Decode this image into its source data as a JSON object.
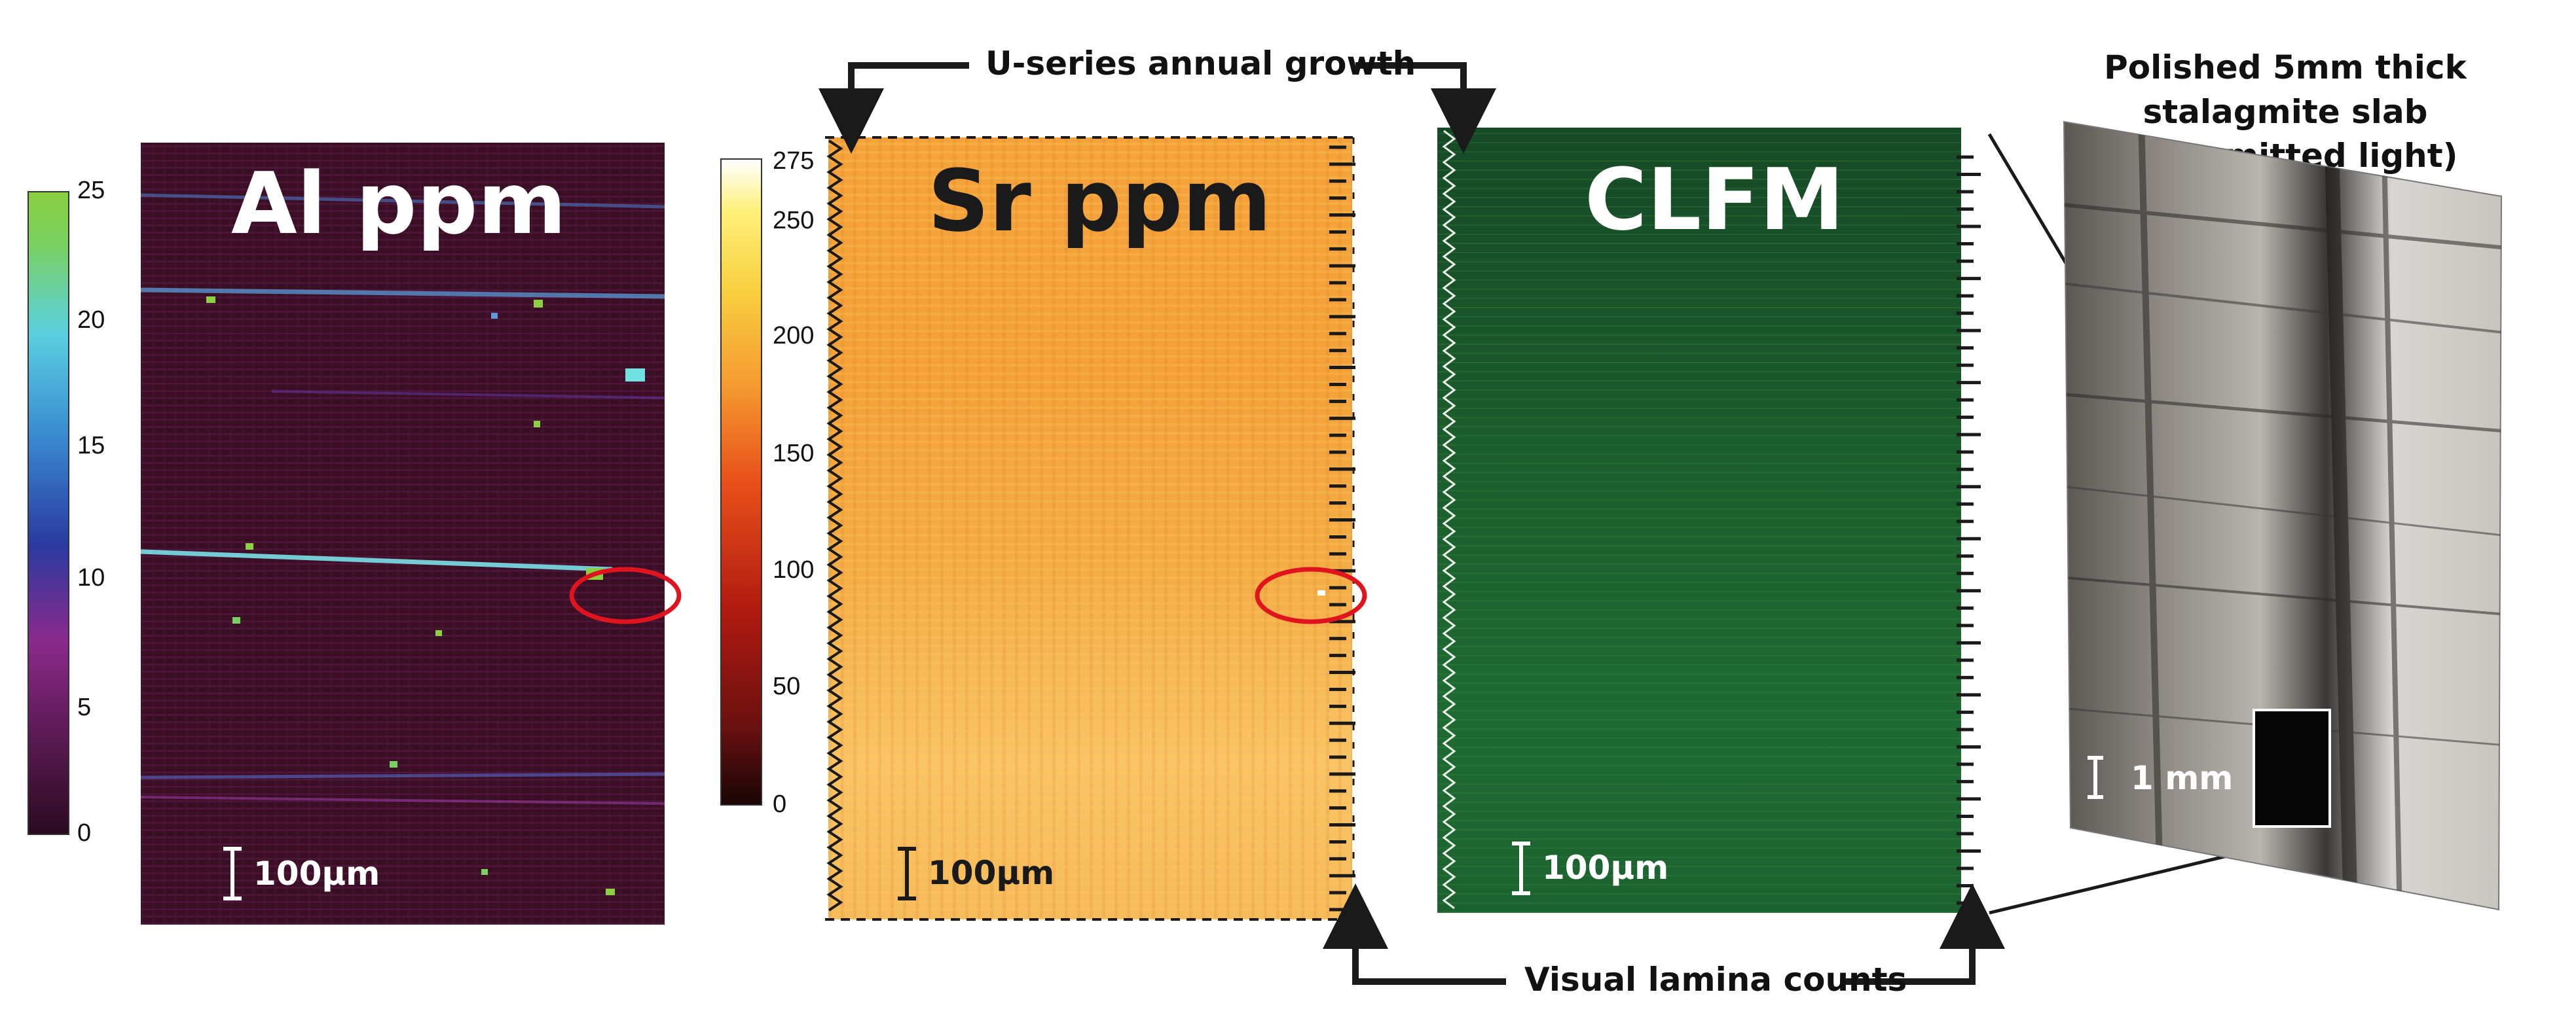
{
  "panels": {
    "al": {
      "title": "Al ppm",
      "scale_label": "100µm",
      "colorbar_ticks": [
        "25",
        "20",
        "15",
        "10",
        "5",
        "0"
      ]
    },
    "sr": {
      "title": "Sr ppm",
      "scale_label": "100µm",
      "colorbar_ticks": [
        "275",
        "250",
        "200",
        "150",
        "100",
        "50",
        "0"
      ]
    },
    "clfm": {
      "title": "CLFM",
      "scale_label": "100µm"
    },
    "slab": {
      "title_line1": "Polished 5mm thick stalagmite slab",
      "title_line2": "(transmitted light)",
      "scale_label": "1 mm"
    }
  },
  "callouts": {
    "top": "U-series annual growth",
    "bottom": "Visual lamina counts"
  },
  "colors": {
    "al_background": "#3a0f24",
    "sr_background": "#f4a23c",
    "clfm_background": "#1b5c2c",
    "highlight_circle": "#e0141e",
    "arrow": "#1a1a1a"
  }
}
